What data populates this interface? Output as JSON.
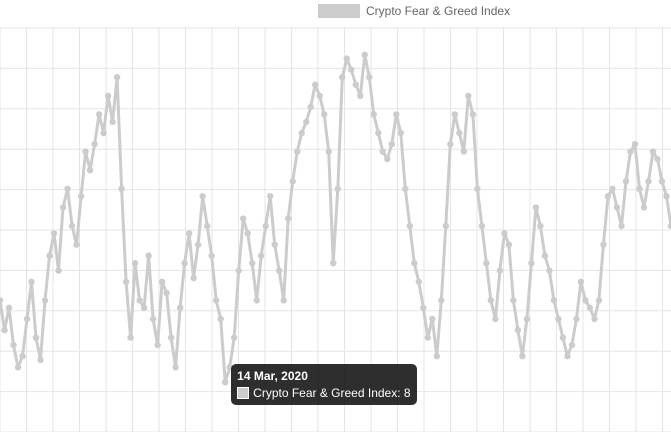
{
  "chart_data": {
    "type": "line",
    "title": "",
    "xlabel": "",
    "ylabel": "",
    "ylim": [
      0,
      100
    ],
    "grid": true,
    "legend_position": "top",
    "series": [
      {
        "name": "Crypto Fear & Greed Index",
        "color": "#cccccc",
        "values": [
          30,
          22,
          28,
          18,
          12,
          15,
          25,
          35,
          20,
          14,
          30,
          42,
          48,
          38,
          55,
          60,
          50,
          45,
          58,
          70,
          65,
          72,
          80,
          75,
          85,
          78,
          90,
          60,
          35,
          20,
          40,
          30,
          28,
          42,
          25,
          18,
          35,
          32,
          20,
          12,
          28,
          40,
          48,
          36,
          45,
          58,
          50,
          42,
          30,
          25,
          8,
          12,
          20,
          38,
          52,
          48,
          40,
          30,
          42,
          50,
          58,
          45,
          38,
          30,
          52,
          62,
          70,
          75,
          78,
          82,
          88,
          85,
          80,
          70,
          40,
          60,
          90,
          95,
          92,
          88,
          85,
          96,
          90,
          80,
          75,
          70,
          68,
          72,
          80,
          75,
          60,
          50,
          40,
          35,
          28,
          20,
          25,
          15,
          30,
          50,
          72,
          80,
          75,
          70,
          85,
          80,
          60,
          50,
          40,
          30,
          25,
          38,
          48,
          45,
          30,
          22,
          15,
          25,
          40,
          55,
          50,
          42,
          38,
          30,
          25,
          20,
          15,
          18,
          25,
          35,
          30,
          28,
          25,
          30,
          45,
          58,
          60,
          55,
          50,
          62,
          70,
          72,
          60,
          55,
          62,
          70,
          68,
          62,
          58,
          50
        ]
      }
    ],
    "tooltip": {
      "index": 50,
      "date": "14 Mar, 2020",
      "label": "Crypto Fear & Greed Index: 8"
    }
  }
}
